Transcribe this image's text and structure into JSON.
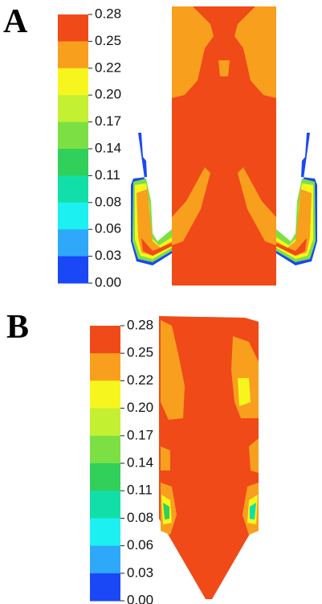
{
  "panels": [
    {
      "label": "A",
      "colorbar": {
        "ticks": [
          "0.28",
          "0.25",
          "0.22",
          "0.20",
          "0.17",
          "0.14",
          "0.11",
          "0.08",
          "0.06",
          "0.03",
          "0.00"
        ],
        "colors": [
          "#f04a18",
          "#f8a01e",
          "#f6f61e",
          "#c4f032",
          "#7ce044",
          "#30d05a",
          "#12dfa8",
          "#1cf0f0",
          "#2ea8f8",
          "#1a48f6"
        ]
      }
    },
    {
      "label": "B",
      "colorbar": {
        "ticks": [
          "0.28",
          "0.25",
          "0.22",
          "0.20",
          "0.17",
          "0.14",
          "0.11",
          "0.08",
          "0.06",
          "0.03",
          "0.00"
        ],
        "colors": [
          "#f04a18",
          "#f8a01e",
          "#f6f61e",
          "#c4f032",
          "#7ce044",
          "#30d05a",
          "#12dfa8",
          "#1cf0f0",
          "#2ea8f8",
          "#1a48f6"
        ]
      }
    }
  ]
}
